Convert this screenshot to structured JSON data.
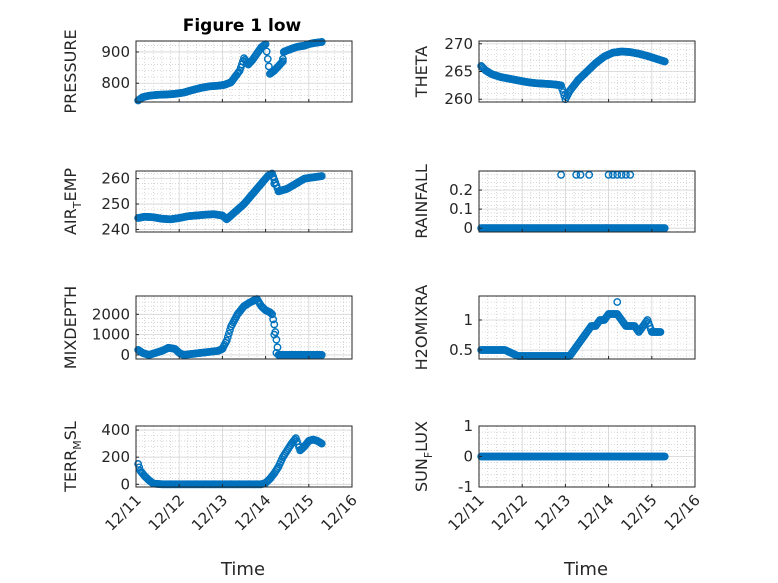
{
  "figure": {
    "title": "Figure 1 low"
  },
  "colors": {
    "marker": "#0072BD",
    "grid": "#bfbfbf",
    "axis": "#262626"
  },
  "xaxis": {
    "ticks": [
      0,
      1,
      2,
      3,
      4,
      5
    ],
    "tick_labels": [
      "12/11",
      "12/12",
      "12/13",
      "12/14",
      "12/15",
      "12/16"
    ],
    "xlabel": "Time"
  },
  "chart_data": [
    {
      "type": "scatter",
      "panel": "PRESSURE",
      "ylabel_main": "PRESSURE",
      "ylabel_sub": "",
      "ylim": [
        740,
        935
      ],
      "yticks": [
        800,
        900
      ],
      "ytick_labels": [
        "800",
        "900"
      ],
      "x": [
        0.05,
        0.15,
        0.3,
        0.5,
        0.7,
        0.9,
        1.1,
        1.3,
        1.5,
        1.7,
        1.9,
        2.05,
        2.2,
        2.4,
        2.5,
        2.6,
        2.7,
        2.8,
        2.9,
        3.0,
        3.1,
        3.2,
        3.3,
        3.4,
        3.42,
        3.5,
        3.6,
        3.7,
        3.8,
        3.9,
        4.0,
        4.1,
        4.2,
        4.3
      ],
      "values": [
        745,
        755,
        760,
        763,
        764,
        766,
        770,
        778,
        785,
        790,
        792,
        795,
        803,
        840,
        880,
        860,
        875,
        895,
        915,
        925,
        830,
        840,
        855,
        870,
        900,
        905,
        910,
        915,
        918,
        920,
        925,
        928,
        930,
        932
      ],
      "outliers": [
        [
          3.4,
          878
        ]
      ]
    },
    {
      "type": "scatter",
      "panel": "THETA",
      "ylabel_main": "THETA",
      "ylabel_sub": "",
      "ylim": [
        259.5,
        270.5
      ],
      "yticks": [
        260,
        265,
        270
      ],
      "ytick_labels": [
        "260",
        "265",
        "270"
      ],
      "x": [
        0.05,
        0.15,
        0.3,
        0.5,
        0.7,
        0.9,
        1.1,
        1.3,
        1.5,
        1.7,
        1.9,
        2.0,
        2.1,
        2.3,
        2.5,
        2.7,
        2.9,
        3.1,
        3.3,
        3.5,
        3.7,
        3.9,
        4.1,
        4.3
      ],
      "values": [
        266,
        265.2,
        264.5,
        264,
        263.7,
        263.4,
        263.1,
        262.9,
        262.8,
        262.7,
        262.5,
        260,
        261.5,
        263.5,
        265,
        266.5,
        267.7,
        268.4,
        268.6,
        268.5,
        268.2,
        267.8,
        267.3,
        266.8
      ],
      "outliers": []
    },
    {
      "type": "scatter",
      "panel": "AIR_TEMP",
      "ylabel_main": "AIR",
      "ylabel_sub": "T",
      "ylabel_tail": "EMP",
      "ylim": [
        239,
        263
      ],
      "yticks": [
        240,
        250,
        260
      ],
      "ytick_labels": [
        "240",
        "250",
        "260"
      ],
      "x": [
        0.05,
        0.2,
        0.4,
        0.6,
        0.8,
        1.0,
        1.2,
        1.4,
        1.6,
        1.8,
        2.0,
        2.1,
        2.3,
        2.5,
        2.7,
        2.9,
        3.05,
        3.15,
        3.3,
        3.5,
        3.7,
        3.9,
        4.1,
        4.3
      ],
      "values": [
        244.5,
        245,
        244.8,
        244.2,
        244,
        244.5,
        245.2,
        245.5,
        245.8,
        246,
        245.5,
        244,
        247,
        250,
        254,
        258,
        261,
        262,
        255,
        256,
        258,
        260,
        260.5,
        261
      ],
      "outliers": [
        [
          3.2,
          258
        ]
      ]
    },
    {
      "type": "scatter",
      "panel": "RAINFALL",
      "ylabel_main": "RAINFALL",
      "ylabel_sub": "",
      "ylim": [
        -0.02,
        0.3
      ],
      "yticks": [
        0,
        0.1,
        0.2
      ],
      "ytick_labels": [
        "0",
        "0.1",
        "0.2"
      ],
      "x_range": [
        0.05,
        4.3
      ],
      "baseline": 0,
      "spikes_x": [
        1.9,
        2.25,
        2.35,
        2.55,
        3.0,
        3.1,
        3.2,
        3.3,
        3.4,
        3.5
      ],
      "spike_value": 0.28,
      "outliers": [
        [
          2.95,
          0
        ]
      ]
    },
    {
      "type": "scatter",
      "panel": "MIXDEPTH",
      "ylabel_main": "MIXDEPTH",
      "ylabel_sub": "",
      "ylim": [
        -200,
        2900
      ],
      "yticks": [
        0,
        1000,
        2000
      ],
      "ytick_labels": [
        "0",
        "1000",
        "2000"
      ],
      "x": [
        0.05,
        0.15,
        0.3,
        0.45,
        0.6,
        0.75,
        0.9,
        1.0,
        1.1,
        1.3,
        1.5,
        1.7,
        1.9,
        2.0,
        2.1,
        2.2,
        2.35,
        2.5,
        2.65,
        2.8,
        2.9,
        3.0,
        3.1,
        3.15,
        3.2,
        3.3,
        3.5,
        3.7,
        3.9,
        4.1,
        4.3
      ],
      "values": [
        250,
        100,
        0,
        100,
        200,
        350,
        300,
        100,
        0,
        50,
        100,
        150,
        200,
        300,
        700,
        1400,
        2000,
        2400,
        2600,
        2750,
        2400,
        2200,
        2100,
        2000,
        1500,
        0,
        0,
        0,
        0,
        0,
        0
      ],
      "outliers": [
        [
          3.2,
          1000
        ],
        [
          3.25,
          100
        ]
      ]
    },
    {
      "type": "scatter",
      "panel": "H2OMIXRA",
      "ylabel_main": "H2OMIXRA",
      "ylabel_sub": "",
      "ylim": [
        0.35,
        1.4
      ],
      "yticks": [
        0.5,
        1
      ],
      "ytick_labels": [
        "0.5",
        "1"
      ],
      "x": [
        0.05,
        0.3,
        0.6,
        0.9,
        1.2,
        1.5,
        1.8,
        2.0,
        2.1,
        2.2,
        2.3,
        2.4,
        2.5,
        2.6,
        2.7,
        2.8,
        2.9,
        3.0,
        3.1,
        3.2,
        3.3,
        3.4,
        3.5,
        3.6,
        3.7,
        3.8,
        3.9,
        4.0,
        4.2
      ],
      "values": [
        0.5,
        0.5,
        0.5,
        0.4,
        0.4,
        0.4,
        0.4,
        0.4,
        0.4,
        0.5,
        0.6,
        0.7,
        0.8,
        0.9,
        0.9,
        1.0,
        1.0,
        1.1,
        1.1,
        1.1,
        1.0,
        0.9,
        0.9,
        0.9,
        0.8,
        0.9,
        1.0,
        0.8,
        0.8
      ],
      "outliers": [
        [
          3.2,
          1.3
        ]
      ]
    },
    {
      "type": "scatter",
      "panel": "TERR_MSL",
      "ylabel_main": "TERR",
      "ylabel_sub": "M",
      "ylabel_tail": "SL",
      "ylim": [
        -20,
        430
      ],
      "yticks": [
        0,
        200,
        400
      ],
      "ytick_labels": [
        "0",
        "200",
        "400"
      ],
      "x": [
        0.05,
        0.1,
        0.2,
        0.3,
        0.4,
        0.6,
        1.0,
        1.5,
        2.0,
        2.5,
        2.9,
        3.0,
        3.1,
        3.2,
        3.3,
        3.4,
        3.5,
        3.6,
        3.7,
        3.8,
        3.9,
        4.0,
        4.1,
        4.2,
        4.3
      ],
      "values": [
        150,
        100,
        60,
        30,
        5,
        0,
        0,
        0,
        0,
        0,
        0,
        10,
        40,
        80,
        130,
        200,
        250,
        300,
        340,
        250,
        280,
        320,
        330,
        320,
        300
      ],
      "outliers": []
    },
    {
      "type": "scatter",
      "panel": "SUN_FLUX",
      "ylabel_main": "SUN",
      "ylabel_sub": "F",
      "ylabel_tail": "LUX",
      "ylim": [
        -1,
        1
      ],
      "yticks": [
        -1,
        0,
        1
      ],
      "ytick_labels": [
        "-1",
        "0",
        "1"
      ],
      "x_range": [
        0.05,
        4.3
      ],
      "baseline": 0,
      "outliers": []
    }
  ]
}
